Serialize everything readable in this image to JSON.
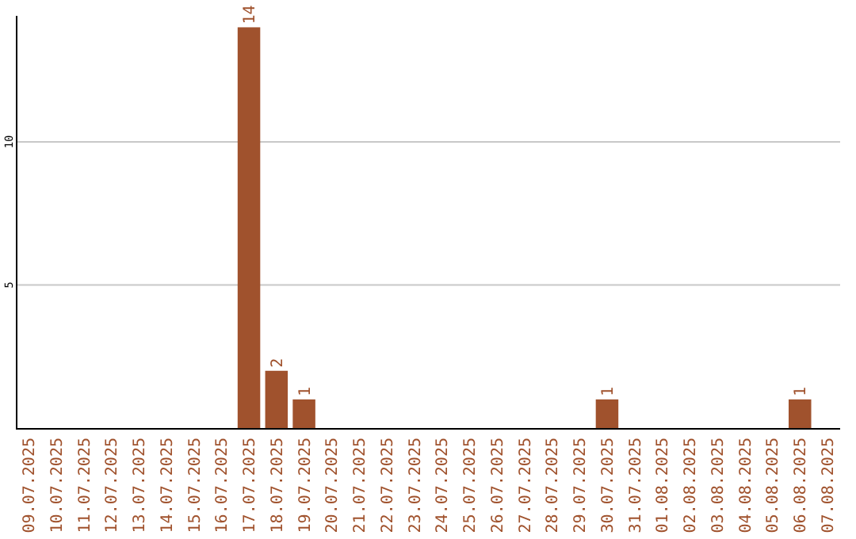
{
  "chart_data": {
    "type": "bar",
    "categories": [
      "09.07.2025",
      "10.07.2025",
      "11.07.2025",
      "12.07.2025",
      "13.07.2025",
      "14.07.2025",
      "15.07.2025",
      "16.07.2025",
      "17.07.2025",
      "18.07.2025",
      "19.07.2025",
      "20.07.2025",
      "21.07.2025",
      "22.07.2025",
      "23.07.2025",
      "24.07.2025",
      "25.07.2025",
      "26.07.2025",
      "27.07.2025",
      "28.07.2025",
      "29.07.2025",
      "30.07.2025",
      "31.07.2025",
      "01.08.2025",
      "02.08.2025",
      "03.08.2025",
      "04.08.2025",
      "05.08.2025",
      "06.08.2025",
      "07.08.2025"
    ],
    "values": [
      0,
      0,
      0,
      0,
      0,
      0,
      0,
      0,
      14,
      2,
      1,
      0,
      0,
      0,
      0,
      0,
      0,
      0,
      0,
      0,
      0,
      1,
      0,
      0,
      0,
      0,
      0,
      0,
      1,
      0
    ],
    "value_labels": [
      null,
      null,
      null,
      null,
      null,
      null,
      null,
      null,
      "14",
      "2",
      "1",
      null,
      null,
      null,
      null,
      null,
      null,
      null,
      null,
      null,
      null,
      "1",
      null,
      null,
      null,
      null,
      null,
      null,
      "1",
      null
    ],
    "color": "#a0522d",
    "ylim": [
      0,
      14.4
    ],
    "yticks": [
      5,
      10
    ],
    "grid": "y"
  }
}
